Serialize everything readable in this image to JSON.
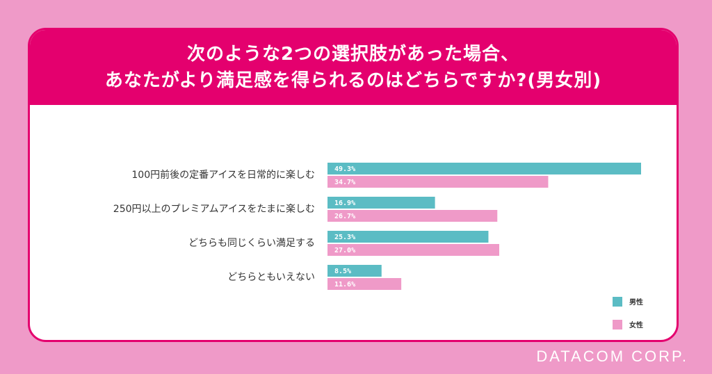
{
  "title_lines": [
    "次のような2つの選択肢があった場合、",
    "あなたがより満足感を得られるのはどちらですか?(男女別)"
  ],
  "brand": "DATACOM CORP.",
  "colors": {
    "accent": "#e4006e",
    "male": "#5bbcc4",
    "female": "#ef9ac8",
    "background": "#ef9ac8"
  },
  "chart_data": {
    "type": "bar",
    "orientation": "horizontal",
    "categories": [
      "100円前後の定番アイスを日常的に楽しむ",
      "250円以上のプレミアムアイスをたまに楽しむ",
      "どちらも同じくらい満足する",
      "どちらともいえない"
    ],
    "series": [
      {
        "name": "男性",
        "values": [
          49.3,
          16.9,
          25.3,
          8.5
        ],
        "labels": [
          "49.3%",
          "16.9%",
          "25.3%",
          "8.5%"
        ]
      },
      {
        "name": "女性",
        "values": [
          34.7,
          26.7,
          27.0,
          11.6
        ],
        "labels": [
          "34.7%",
          "26.7%",
          "27.0%",
          "11.6%"
        ]
      }
    ],
    "xlim": [
      0,
      49.3
    ],
    "grid": false,
    "legend_position": "bottom-right"
  }
}
